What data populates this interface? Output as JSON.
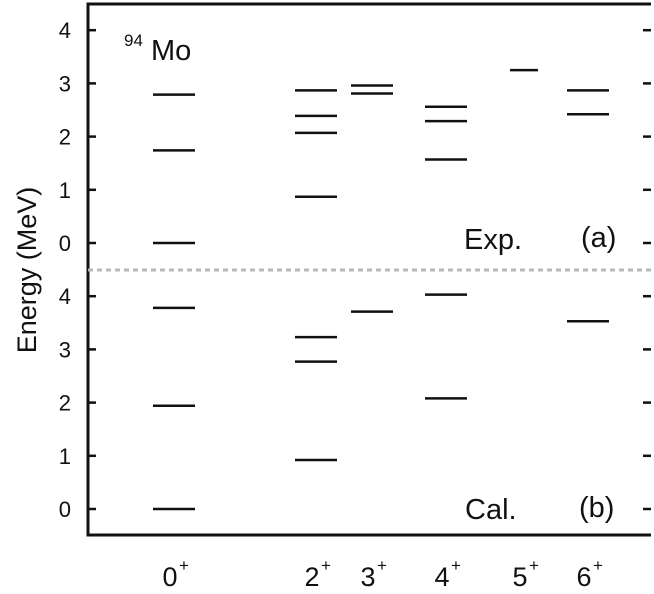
{
  "chart_data": {
    "type": "level-scheme",
    "nucleus": {
      "mass": "94",
      "symbol": "Mo"
    },
    "ylabel": "Energy (MeV)",
    "ylim": [
      0,
      4
    ],
    "yticks": [
      "0",
      "1",
      "2",
      "3",
      "4"
    ],
    "categories": [
      {
        "spin": "0",
        "parity": "+"
      },
      {
        "spin": "2",
        "parity": "+"
      },
      {
        "spin": "3",
        "parity": "+"
      },
      {
        "spin": "4",
        "parity": "+"
      },
      {
        "spin": "5",
        "parity": "+"
      },
      {
        "spin": "6",
        "parity": "+"
      }
    ],
    "panels": [
      {
        "id": "a",
        "label": "Exp.",
        "tag": "(a)",
        "levels": [
          [
            0.0,
            1.74,
            2.79
          ],
          [
            0.87,
            2.07,
            2.39,
            2.87
          ],
          [
            2.81,
            2.96
          ],
          [
            1.57,
            2.29,
            2.56
          ],
          [
            3.25
          ],
          [
            2.42,
            2.87
          ]
        ]
      },
      {
        "id": "b",
        "label": "Cal.",
        "tag": "(b)",
        "levels": [
          [
            0.0,
            1.94,
            3.78
          ],
          [
            0.92,
            2.77,
            3.23
          ],
          [
            3.71
          ],
          [
            2.08,
            4.03
          ],
          [],
          [
            3.53
          ]
        ]
      }
    ],
    "grid": false,
    "legend": "none"
  }
}
